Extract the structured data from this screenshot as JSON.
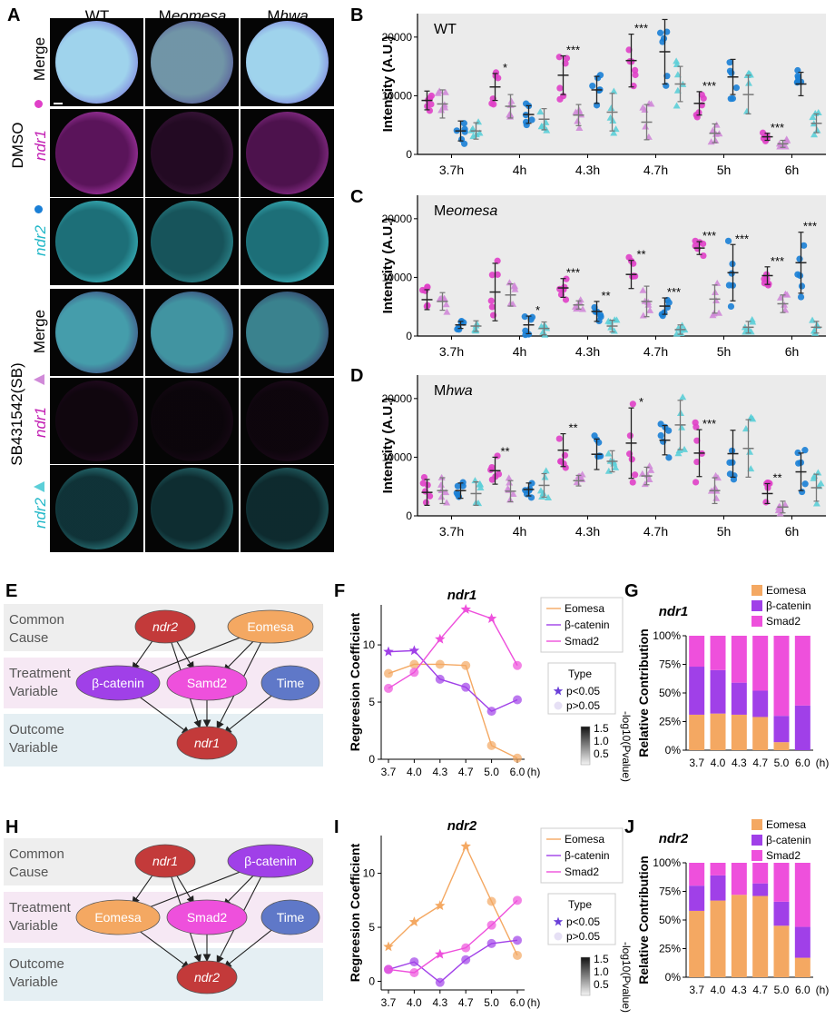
{
  "panels": {
    "A": "A",
    "B": "B",
    "C": "C",
    "D": "D",
    "E": "E",
    "F": "F",
    "G": "G",
    "H": "H",
    "I": "I",
    "J": "J"
  },
  "panelA": {
    "columns": [
      "WT",
      "Meomesa",
      "Mhwa"
    ],
    "columns_prefix": [
      "",
      "M",
      "M"
    ],
    "columns_italic": [
      "",
      "eomesa",
      "hwa"
    ],
    "groups": [
      "DMSO",
      "SB431542(SB)"
    ],
    "rows": [
      "Merge",
      "ndr1",
      "ndr2",
      "Merge",
      "ndr1",
      "ndr2"
    ]
  },
  "colors": {
    "magenta": "#e040c8",
    "lightpink": "#d08ad8",
    "blue": "#1a7fd6",
    "cyan": "#5ccfd8",
    "eomesa": "#f4a862",
    "bcatenin": "#a040e8",
    "smad2": "#ee50dc",
    "ndr_red": "#c33a3a",
    "time_blue": "#5f78c8"
  },
  "scatter": {
    "ylabel": "Intensity  (A.U.)",
    "xticks": [
      "3.7h",
      "4h",
      "4.3h",
      "4.7h",
      "5h",
      "6h"
    ],
    "yticks": [
      "0",
      "10000",
      "20000"
    ],
    "ylim": [
      0,
      24000
    ],
    "B": {
      "title": "WT",
      "means": [
        [
          9200,
          8600,
          4000,
          4000
        ],
        [
          11500,
          8200,
          6800,
          6000
        ],
        [
          13500,
          6700,
          11000,
          7200
        ],
        [
          16000,
          5500,
          17500,
          12000
        ],
        [
          8700,
          3600,
          13200,
          10200
        ],
        [
          3000,
          1800,
          12000,
          5300
        ]
      ],
      "sds": [
        [
          1600,
          2400,
          1700,
          1400
        ],
        [
          2300,
          2000,
          1500,
          1800
        ],
        [
          3300,
          1800,
          2300,
          3200
        ],
        [
          4500,
          3000,
          5500,
          3000
        ],
        [
          2000,
          1600,
          3000,
          3300
        ],
        [
          600,
          600,
          2000,
          1600
        ]
      ],
      "stars": [
        [
          "",
          "",
          "",
          ""
        ],
        [
          "*",
          "",
          "",
          " "
        ],
        [
          "***",
          "",
          "",
          ""
        ],
        [
          "***",
          "",
          "",
          ""
        ],
        [
          "***",
          "",
          "",
          ""
        ],
        [
          "***",
          "",
          "",
          ""
        ]
      ]
    },
    "C": {
      "title": "Meomesa",
      "means": [
        [
          6200,
          5900,
          1900,
          1700
        ],
        [
          7500,
          7000,
          1900,
          1300
        ],
        [
          8200,
          5300,
          4200,
          1700
        ],
        [
          10500,
          5900,
          5100,
          1100
        ],
        [
          15000,
          6300,
          10800,
          1500
        ],
        [
          10300,
          5500,
          12500,
          1500
        ]
      ],
      "sds": [
        [
          1700,
          1500,
          600,
          900
        ],
        [
          4900,
          1900,
          1500,
          1100
        ],
        [
          1600,
          700,
          1700,
          1000
        ],
        [
          2400,
          2600,
          1400,
          800
        ],
        [
          1100,
          2400,
          4800,
          1000
        ],
        [
          1500,
          1500,
          5200,
          1000
        ]
      ],
      "stars": [
        [
          "",
          "",
          "",
          ""
        ],
        [
          "",
          "",
          "*",
          ""
        ],
        [
          "***",
          "",
          "**",
          ""
        ],
        [
          "**",
          "",
          "***",
          ""
        ],
        [
          "***",
          "",
          "***",
          ""
        ],
        [
          "***",
          "",
          "***",
          ""
        ]
      ]
    },
    "D": {
      "title": "Mhwa",
      "means": [
        [
          4000,
          4300,
          4300,
          3800
        ],
        [
          7700,
          4200,
          4500,
          5200
        ],
        [
          11200,
          6000,
          10500,
          9300
        ],
        [
          12400,
          6800,
          12900,
          15500
        ],
        [
          10700,
          4300,
          10600,
          11500
        ],
        [
          3800,
          1500,
          7500,
          4800
        ]
      ],
      "sds": [
        [
          2200,
          2200,
          1300,
          2000
        ],
        [
          2300,
          1800,
          1100,
          2000
        ],
        [
          2800,
          900,
          2600,
          1800
        ],
        [
          6000,
          1500,
          2500,
          4200
        ],
        [
          4000,
          2200,
          4000,
          4900
        ],
        [
          1700,
          1000,
          3200,
          2300
        ]
      ],
      "stars": [
        [
          "",
          "",
          "",
          ""
        ],
        [
          "**",
          "",
          "",
          ""
        ],
        [
          "**",
          "",
          "",
          ""
        ],
        [
          "*",
          "",
          "",
          ""
        ],
        [
          "***",
          "",
          "",
          ""
        ],
        [
          "**",
          "",
          "",
          ""
        ]
      ]
    }
  },
  "dag": {
    "E": {
      "row_labels": [
        "Common\nCause",
        "Treatment\nVariable",
        "Outcome\nVariable"
      ],
      "nodes": {
        "cc1": "ndr2",
        "cc2": "Eomesa",
        "t1": "β-catenin",
        "t2": "Samd2",
        "t3": "Time",
        "out": "ndr1"
      }
    },
    "H": {
      "row_labels": [
        "Common\nCause",
        "Treatment\nVariable",
        "Outcome\nVariable"
      ],
      "nodes": {
        "cc1": "ndr1",
        "cc2": "β-catenin",
        "t1": "Eomesa",
        "t2": "Smad2",
        "t3": "Time",
        "out": "ndr2"
      }
    }
  },
  "chart_data": [
    {
      "id": "F",
      "type": "line",
      "title": "ndr1",
      "ylabel": "Regreesion Coefficient",
      "x": [
        "3.7",
        "4.0",
        "4.3",
        "4.7",
        "5.0",
        "6.0"
      ],
      "xunit": "(h)",
      "ylim": [
        0,
        13.5
      ],
      "yticks": [
        "0",
        "5",
        "10"
      ],
      "series": [
        {
          "name": "Eomesa",
          "values": [
            7.5,
            8.3,
            8.3,
            8.2,
            1.2,
            0.1
          ],
          "sig": [
            false,
            false,
            false,
            false,
            false,
            false
          ]
        },
        {
          "name": "β-catenin",
          "values": [
            9.4,
            9.5,
            7.0,
            6.3,
            4.2,
            5.2
          ],
          "sig": [
            true,
            true,
            false,
            false,
            false,
            false
          ]
        },
        {
          "name": "Smad2",
          "values": [
            6.2,
            7.6,
            10.5,
            13.1,
            12.3,
            8.2
          ],
          "sig": [
            false,
            false,
            true,
            true,
            true,
            false
          ]
        }
      ],
      "legend_type": {
        "title": "Type",
        "sig": "p<0.05",
        "nonsig": "p>0.05"
      },
      "colorbar": {
        "label": "-log10(Pvalue)",
        "ticks": [
          "1.5",
          "1.0",
          "0.5"
        ]
      }
    },
    {
      "id": "G",
      "type": "bar",
      "title": "ndr1",
      "ylabel": "Relative Contribution",
      "categories": [
        "3.7",
        "4.0",
        "4.3",
        "4.7",
        "5.0",
        "6.0"
      ],
      "xunit": "(h)",
      "yticks": [
        "0%",
        "25%",
        "50%",
        "75%",
        "100%"
      ],
      "series": [
        {
          "name": "Eomesa",
          "values": [
            0.31,
            0.32,
            0.31,
            0.29,
            0.07,
            0.0
          ]
        },
        {
          "name": "β-catenin",
          "values": [
            0.42,
            0.38,
            0.28,
            0.23,
            0.23,
            0.39
          ]
        },
        {
          "name": "Smad2",
          "values": [
            0.27,
            0.3,
            0.41,
            0.48,
            0.7,
            0.61
          ]
        }
      ]
    },
    {
      "id": "I",
      "type": "line",
      "title": "ndr2",
      "ylabel": "Regreesion Coefficient",
      "x": [
        "3.7",
        "4.0",
        "4.3",
        "4.7",
        "5.0",
        "6.0"
      ],
      "xunit": "(h)",
      "ylim": [
        -0.8,
        13.5
      ],
      "yticks": [
        "0",
        "5",
        "10"
      ],
      "series": [
        {
          "name": "Eomesa",
          "values": [
            3.2,
            5.5,
            7.0,
            12.5,
            7.4,
            2.4
          ],
          "sig": [
            true,
            true,
            true,
            true,
            false,
            false
          ]
        },
        {
          "name": "β-catenin",
          "values": [
            1.1,
            1.8,
            -0.1,
            2.0,
            3.5,
            3.8
          ],
          "sig": [
            false,
            false,
            false,
            false,
            false,
            false
          ]
        },
        {
          "name": "Smad2",
          "values": [
            1.1,
            0.8,
            2.5,
            3.1,
            5.2,
            7.5
          ],
          "sig": [
            false,
            false,
            true,
            false,
            false,
            false
          ]
        }
      ],
      "legend_type": {
        "title": "Type",
        "sig": "p<0.05",
        "nonsig": "p>0.05"
      },
      "colorbar": {
        "label": "-log10(Pvalue)",
        "ticks": [
          "1.5",
          "1.0",
          "0.5"
        ]
      }
    },
    {
      "id": "J",
      "type": "bar",
      "title": "ndr2",
      "ylabel": "Relative Contribution",
      "categories": [
        "3.7",
        "4.0",
        "4.3",
        "4.7",
        "5.0",
        "6.0"
      ],
      "xunit": "(h)",
      "yticks": [
        "0%",
        "25%",
        "50%",
        "75%",
        "100%"
      ],
      "series": [
        {
          "name": "Eomesa",
          "values": [
            0.58,
            0.67,
            0.72,
            0.71,
            0.45,
            0.17
          ]
        },
        {
          "name": "β-catenin",
          "values": [
            0.22,
            0.22,
            0.0,
            0.11,
            0.21,
            0.27
          ]
        },
        {
          "name": "Smad2",
          "values": [
            0.2,
            0.11,
            0.28,
            0.18,
            0.34,
            0.56
          ]
        }
      ]
    }
  ]
}
